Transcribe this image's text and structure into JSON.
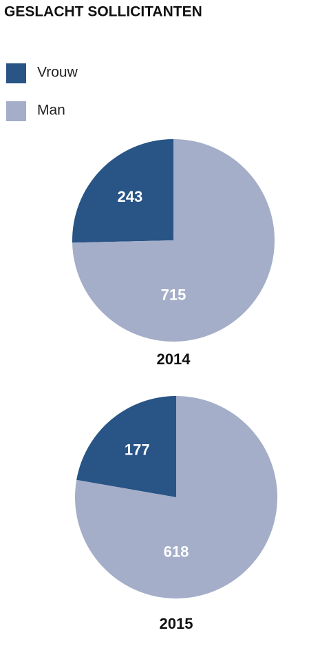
{
  "title": "GESLACHT SOLLICITANTEN",
  "legend": {
    "categories": [
      "Vrouw",
      "Man"
    ],
    "colors": [
      "#285486",
      "#a4aec8"
    ]
  },
  "chart_data": [
    {
      "type": "pie",
      "title": "2014",
      "values": [
        243,
        715
      ]
    },
    {
      "type": "pie",
      "title": "2015",
      "values": [
        177,
        618
      ]
    }
  ]
}
